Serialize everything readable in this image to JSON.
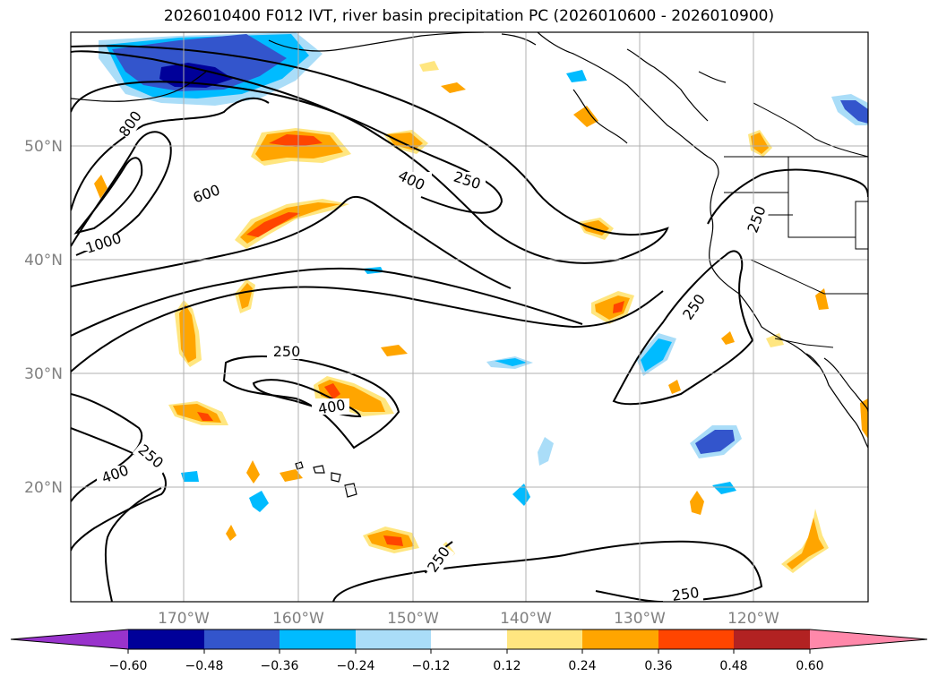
{
  "title": "2026010400 F012 IVT, river basin precipitation PC (2026010600 - 2026010900)",
  "map": {
    "lat_labels": [
      "50°N",
      "40°N",
      "30°N",
      "20°N"
    ],
    "lon_labels": [
      "170°W",
      "160°W",
      "150°W",
      "140°W",
      "130°W",
      "120°W"
    ],
    "gridlines": true,
    "contour_labels": [
      "800",
      "1000",
      "600",
      "400",
      "250",
      "250",
      "250",
      "250",
      "400",
      "250",
      "400",
      "250",
      "250"
    ],
    "contour_color": "#000000",
    "coastline_color": "#000000"
  },
  "colorbar": {
    "orientation": "horizontal",
    "extend": "both",
    "ticks": [
      "−0.60",
      "−0.48",
      "−0.36",
      "−0.24",
      "−0.12",
      "0.12",
      "0.24",
      "0.36",
      "0.48",
      "0.60"
    ],
    "colors": [
      "#9933cc",
      "#000099",
      "#3355cc",
      "#00bbff",
      "#aaddf8",
      "#ffffff",
      "#ffe680",
      "#ffa500",
      "#ff4500",
      "#b22222",
      "#ff88aa"
    ]
  }
}
